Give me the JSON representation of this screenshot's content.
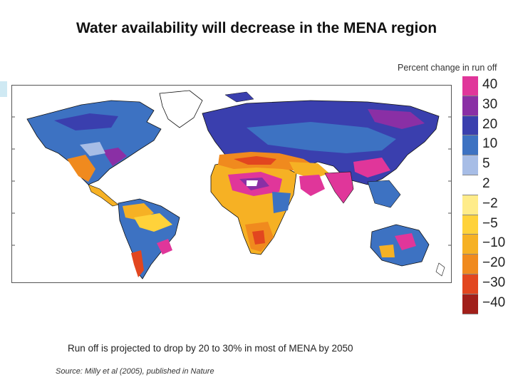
{
  "slide": {
    "title": "Water availability will decrease in the MENA region",
    "caption": "Run off is projected to drop by 20 to 30% in most of MENA by 2050",
    "source": "Source: Milly et al (2005), published in Nature"
  },
  "legend": {
    "title": "Percent change in run off",
    "items": [
      {
        "label": "40",
        "color": "#e0369a"
      },
      {
        "label": "30",
        "color": "#8a2fa5"
      },
      {
        "label": "20",
        "color": "#3a3fae"
      },
      {
        "label": "10",
        "color": "#3d72c2"
      },
      {
        "label": "5",
        "color": "#a7bde6"
      },
      {
        "label": "2",
        "color": "#ffffff"
      },
      {
        "label": "−2",
        "color": "#ffec8a"
      },
      {
        "label": "−5",
        "color": "#ffd23a"
      },
      {
        "label": "−10",
        "color": "#f6b124"
      },
      {
        "label": "−20",
        "color": "#f08a1e"
      },
      {
        "label": "−30",
        "color": "#e2461f"
      },
      {
        "label": "−40",
        "color": "#a11f1a"
      }
    ]
  },
  "colors": {
    "land_base": "#3a5fbe",
    "coastline": "#111111",
    "frame": "#555555",
    "ice": "#ffffff"
  }
}
